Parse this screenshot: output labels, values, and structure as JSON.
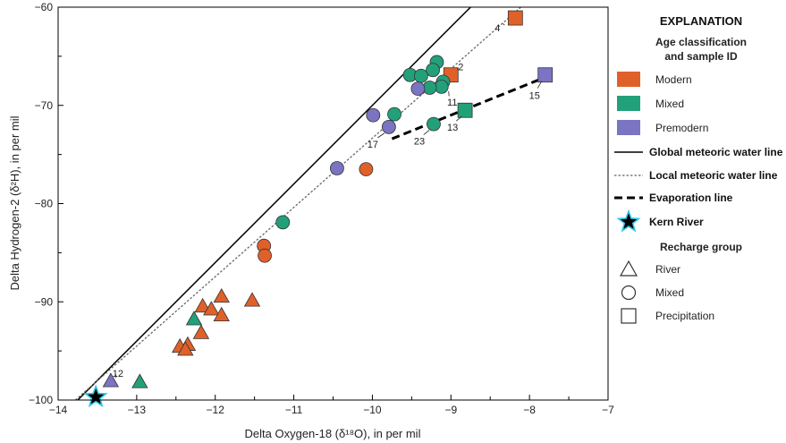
{
  "chart_data": {
    "type": "scatter",
    "xlabel": "Delta Oxygen-18 (δ¹⁸O), in per mil",
    "ylabel": "Delta Hydrogen-2 (δ²H), in per mil",
    "xlim": [
      -14,
      -7
    ],
    "ylim": [
      -100,
      -60
    ],
    "xticks": [
      -14,
      -13,
      -12,
      -11,
      -10,
      -9,
      -8,
      -7
    ],
    "yticks": [
      -100,
      -90,
      -80,
      -70,
      -60
    ],
    "colors": {
      "Modern": "#e0602a",
      "Mixed": "#22a07a",
      "Premodern": "#7a74c2"
    },
    "lines": [
      {
        "name": "Global meteoric water line",
        "style": "solid",
        "x": [
          -13.77,
          -8.5
        ],
        "y": [
          -100.16,
          -58.0
        ]
      },
      {
        "name": "Local meteoric water line",
        "style": "dotted",
        "x": [
          -13.78,
          -8.11
        ],
        "y": [
          -100.0,
          -60.0
        ]
      },
      {
        "name": "Evaporation line",
        "style": "dashed",
        "x": [
          -9.75,
          -7.85
        ],
        "y": [
          -73.4,
          -67.3
        ]
      }
    ],
    "points": [
      {
        "x": -8.18,
        "y": -61.1,
        "age": "Modern",
        "group": "Precipitation",
        "label": "4"
      },
      {
        "x": -9.0,
        "y": -66.9,
        "age": "Modern",
        "group": "Precipitation",
        "label": "2"
      },
      {
        "x": -8.82,
        "y": -70.5,
        "age": "Mixed",
        "group": "Precipitation",
        "label": "13"
      },
      {
        "x": -7.8,
        "y": -66.9,
        "age": "Premodern",
        "group": "Precipitation",
        "label": "15"
      },
      {
        "x": -9.18,
        "y": -65.6,
        "age": "Mixed",
        "group": "Mixed",
        "label": ""
      },
      {
        "x": -9.23,
        "y": -66.4,
        "age": "Mixed",
        "group": "Mixed",
        "label": ""
      },
      {
        "x": -9.52,
        "y": -66.9,
        "age": "Mixed",
        "group": "Mixed",
        "label": ""
      },
      {
        "x": -9.38,
        "y": -67.0,
        "age": "Mixed",
        "group": "Mixed",
        "label": ""
      },
      {
        "x": -9.1,
        "y": -67.6,
        "age": "Mixed",
        "group": "Mixed",
        "label": ""
      },
      {
        "x": -9.12,
        "y": -68.1,
        "age": "Mixed",
        "group": "Mixed",
        "label": "11"
      },
      {
        "x": -9.27,
        "y": -68.2,
        "age": "Mixed",
        "group": "Mixed",
        "label": ""
      },
      {
        "x": -9.42,
        "y": -68.3,
        "age": "Premodern",
        "group": "Mixed",
        "label": ""
      },
      {
        "x": -9.72,
        "y": -70.9,
        "age": "Mixed",
        "group": "Mixed",
        "label": ""
      },
      {
        "x": -9.99,
        "y": -71.0,
        "age": "Premodern",
        "group": "Mixed",
        "label": ""
      },
      {
        "x": -9.79,
        "y": -72.2,
        "age": "Premodern",
        "group": "Mixed",
        "label": "17"
      },
      {
        "x": -9.22,
        "y": -71.9,
        "age": "Mixed",
        "group": "Mixed",
        "label": "23"
      },
      {
        "x": -10.45,
        "y": -76.4,
        "age": "Premodern",
        "group": "Mixed",
        "label": ""
      },
      {
        "x": -10.08,
        "y": -76.5,
        "age": "Modern",
        "group": "Mixed",
        "label": ""
      },
      {
        "x": -11.14,
        "y": -81.9,
        "age": "Mixed",
        "group": "Mixed",
        "label": ""
      },
      {
        "x": -11.38,
        "y": -84.3,
        "age": "Modern",
        "group": "Mixed",
        "label": ""
      },
      {
        "x": -11.37,
        "y": -85.3,
        "age": "Modern",
        "group": "Mixed",
        "label": ""
      },
      {
        "x": -11.53,
        "y": -89.9,
        "age": "Modern",
        "group": "River",
        "label": ""
      },
      {
        "x": -11.92,
        "y": -89.5,
        "age": "Modern",
        "group": "River",
        "label": ""
      },
      {
        "x": -12.16,
        "y": -90.5,
        "age": "Modern",
        "group": "River",
        "label": ""
      },
      {
        "x": -12.05,
        "y": -90.8,
        "age": "Modern",
        "group": "River",
        "label": ""
      },
      {
        "x": -11.92,
        "y": -91.4,
        "age": "Modern",
        "group": "River",
        "label": ""
      },
      {
        "x": -12.27,
        "y": -91.8,
        "age": "Mixed",
        "group": "River",
        "label": ""
      },
      {
        "x": -12.18,
        "y": -93.2,
        "age": "Modern",
        "group": "River",
        "label": ""
      },
      {
        "x": -12.35,
        "y": -94.4,
        "age": "Modern",
        "group": "River",
        "label": ""
      },
      {
        "x": -12.45,
        "y": -94.6,
        "age": "Modern",
        "group": "River",
        "label": ""
      },
      {
        "x": -12.38,
        "y": -94.9,
        "age": "Modern",
        "group": "River",
        "label": ""
      },
      {
        "x": -12.96,
        "y": -98.2,
        "age": "Mixed",
        "group": "River",
        "label": ""
      },
      {
        "x": -13.33,
        "y": -98.1,
        "age": "Premodern",
        "group": "River",
        "label": "12"
      }
    ],
    "kern_river": {
      "x": -13.52,
      "y": -99.7,
      "label": "Kern River"
    },
    "legend": {
      "title": "EXPLANATION",
      "age_title_line1": "Age classification",
      "age_title_line2": "and sample ID",
      "age_items": [
        "Modern",
        "Mixed",
        "Premodern"
      ],
      "line_items": [
        "Global meteoric water line",
        "Local meteoric water line",
        "Evaporation line"
      ],
      "kern_label": "Kern River",
      "recharge_title": "Recharge group",
      "recharge_items": [
        "River",
        "Mixed",
        "Precipitation"
      ]
    }
  }
}
